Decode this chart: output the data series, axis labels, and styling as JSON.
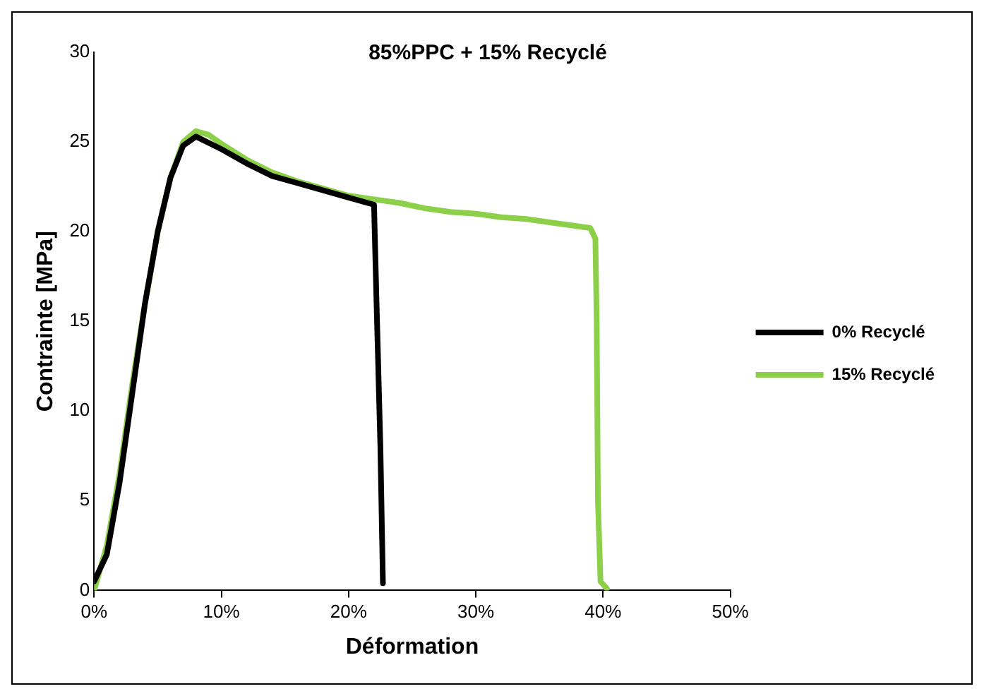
{
  "chart_data": {
    "type": "line",
    "title": "85%PPC + 15% Recyclé",
    "xlabel": "Déformation",
    "ylabel": "Contrainte [MPa]",
    "xlim": [
      0,
      50
    ],
    "xticks": [
      {
        "value": 0,
        "label": "0%"
      },
      {
        "value": 10,
        "label": "10%"
      },
      {
        "value": 20,
        "label": "20%"
      },
      {
        "value": 30,
        "label": "30%"
      },
      {
        "value": 40,
        "label": "40%"
      },
      {
        "value": 50,
        "label": "50%"
      }
    ],
    "ylim": [
      0,
      30
    ],
    "yticks": [
      0,
      5,
      10,
      15,
      20,
      25,
      30
    ],
    "grid": false,
    "legend": "right",
    "marker": "none",
    "series": [
      {
        "name": "0% Recyclé",
        "color": "#000000",
        "x": [
          0,
          1,
          2,
          3,
          4,
          5,
          6,
          7,
          8,
          10,
          12,
          14,
          16,
          18,
          20,
          22,
          22.2,
          22.5,
          22.7
        ],
        "values": [
          0.5,
          2,
          6,
          11,
          16,
          20,
          23,
          24.8,
          25.3,
          24.6,
          23.8,
          23.1,
          22.7,
          22.3,
          21.9,
          21.5,
          16,
          8,
          0.4
        ]
      },
      {
        "name": "15% Recyclé",
        "color": "#8cd04a",
        "x": [
          0,
          1,
          2,
          3,
          4,
          5,
          6,
          7,
          8,
          9,
          10,
          12,
          14,
          16,
          18,
          20,
          22,
          24,
          26,
          28,
          30,
          32,
          34,
          36,
          38,
          39,
          39.4,
          39.5,
          39.6,
          39.8,
          40.3
        ],
        "values": [
          0,
          2.5,
          6.5,
          11.5,
          16,
          20,
          23,
          25,
          25.6,
          25.4,
          24.9,
          24,
          23.3,
          22.8,
          22.4,
          22,
          21.8,
          21.6,
          21.3,
          21.1,
          21,
          20.8,
          20.7,
          20.5,
          20.3,
          20.2,
          19.6,
          15,
          5,
          0.5,
          0.1
        ]
      }
    ]
  }
}
